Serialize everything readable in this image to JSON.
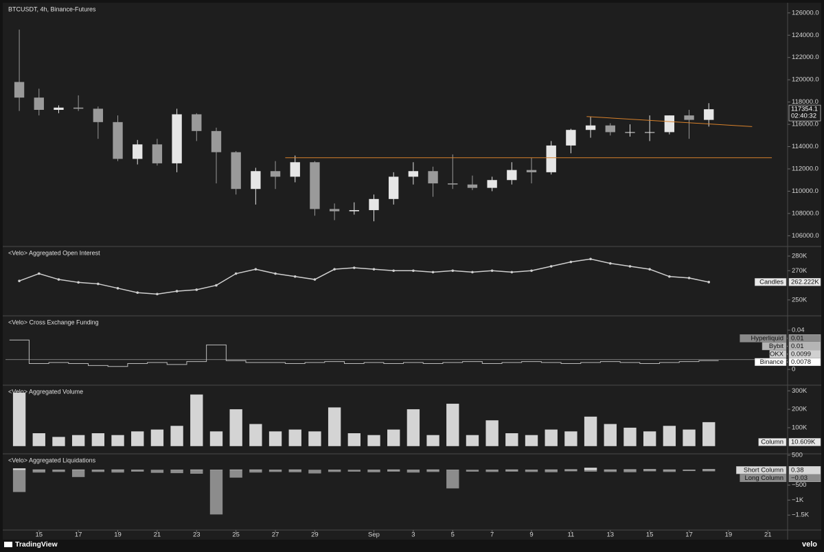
{
  "x_axis": {
    "x": [
      14,
      15,
      16,
      17,
      18,
      19,
      20,
      21,
      22,
      23,
      24,
      25,
      26,
      27,
      28,
      29,
      30,
      31,
      32,
      33,
      34,
      35,
      36,
      37,
      38,
      39,
      40,
      41,
      42,
      43,
      44,
      45,
      46,
      47,
      48,
      49
    ],
    "xlim": [
      13.3,
      53.0
    ],
    "xticks": [
      15,
      17,
      19,
      21,
      23,
      25,
      27,
      29,
      {
        "value": 32,
        "label": "Sep"
      },
      {
        "value": 34,
        "label": "3"
      },
      {
        "value": 36,
        "label": "5"
      },
      {
        "value": 38,
        "label": "7"
      },
      {
        "value": 40,
        "label": "9"
      },
      {
        "value": 42,
        "label": "11"
      },
      {
        "value": 44,
        "label": "13"
      },
      {
        "value": 46,
        "label": "15"
      },
      {
        "value": 48,
        "label": "17"
      },
      {
        "value": 50,
        "label": "19"
      },
      {
        "value": 52,
        "label": "21"
      }
    ]
  },
  "chart_data": [
    {
      "type": "candlestick",
      "title": "BTCUSDT, 4h, Binance-Futures",
      "open": [
        119800,
        118400,
        117300,
        117500,
        117400,
        116200,
        112900,
        114200,
        112500,
        116900,
        115400,
        113500,
        110200,
        111800,
        111300,
        112600,
        108400,
        108200,
        108300,
        109300,
        111300,
        111800,
        110700,
        110600,
        110300,
        111000,
        111900,
        111700,
        114100,
        115500,
        115900,
        115300,
        115300,
        115300,
        116800,
        116400
      ],
      "high": [
        124500,
        119200,
        117700,
        118600,
        117600,
        116800,
        114600,
        114700,
        117400,
        117000,
        115700,
        113600,
        112100,
        112700,
        113200,
        112700,
        108900,
        109000,
        109700,
        111700,
        112600,
        112200,
        113300,
        111400,
        111300,
        112600,
        113000,
        114500,
        115600,
        116700,
        116100,
        116000,
        116800,
        116800,
        117300,
        117900
      ],
      "low": [
        117200,
        116800,
        117000,
        117200,
        114700,
        112700,
        112400,
        112300,
        111700,
        114500,
        110700,
        109700,
        108800,
        110200,
        110800,
        107800,
        107400,
        107900,
        107300,
        108800,
        110600,
        109500,
        110200,
        110100,
        110000,
        110600,
        110700,
        111500,
        113400,
        114800,
        115000,
        114900,
        114500,
        115100,
        114700,
        115800
      ],
      "close": [
        118400,
        117300,
        117500,
        117400,
        116200,
        112900,
        114200,
        112500,
        116900,
        115400,
        113500,
        110200,
        111800,
        111300,
        112600,
        108400,
        108200,
        108300,
        109300,
        111300,
        111800,
        110700,
        110600,
        110300,
        111000,
        111900,
        111700,
        114100,
        115500,
        115900,
        115300,
        115300,
        115300,
        116800,
        116400,
        117354.1
      ],
      "up_color": "#e6e6e6",
      "down_color": "#9a9a9a",
      "ylim": [
        105100,
        126850
      ],
      "yticks": [
        {
          "value": 106000,
          "label": "106000.0"
        },
        {
          "value": 108000,
          "label": "108000.0"
        },
        {
          "value": 110000,
          "label": "110000.0"
        },
        {
          "value": 112000,
          "label": "112000.0"
        },
        {
          "value": 114000,
          "label": "114000.0"
        },
        {
          "value": 116000,
          "label": "116000.0"
        },
        {
          "value": 118000,
          "label": "118000.0"
        },
        {
          "value": 120000,
          "label": "120000.0"
        },
        {
          "value": 122000,
          "label": "122000.0"
        },
        {
          "value": 124000,
          "label": "124000.0"
        },
        {
          "value": 126000,
          "label": "126000.0"
        }
      ],
      "lines": [
        {
          "x": [
            27.5,
            52.2
          ],
          "y": [
            113000,
            113000
          ]
        },
        {
          "x": [
            42.8,
            51.2
          ],
          "y": [
            116700,
            115800
          ]
        }
      ],
      "line_color": "#d9822b",
      "price_tag": {
        "value": 117354.1,
        "countdown": "02:40:32"
      }
    },
    {
      "type": "line",
      "title": "<Velo> Aggregated Open Interest",
      "values": [
        263000,
        268000,
        264000,
        262000,
        261000,
        258000,
        255000,
        254000,
        256000,
        257000,
        260000,
        268000,
        271000,
        268000,
        266000,
        264000,
        271000,
        272000,
        271000,
        270000,
        270000,
        269000,
        270000,
        269000,
        270000,
        269000,
        270000,
        273000,
        276000,
        278000,
        275000,
        273000,
        271000,
        266000,
        265000,
        262222
      ],
      "color": "#cfcfcf",
      "ylim": [
        239600,
        286100
      ],
      "yticks": [
        {
          "value": 250000,
          "label": "250K"
        },
        {
          "value": 270000,
          "label": "270K"
        },
        {
          "value": 280000,
          "label": "280K"
        }
      ],
      "tag": {
        "name": "Candles",
        "value": 262222,
        "label": "262.222K"
      }
    },
    {
      "type": "step",
      "title": "<Velo> Cross Exchange Funding",
      "values": [
        0.03,
        0.006,
        0.007,
        0.006,
        0.004,
        0.003,
        0.006,
        0.007,
        0.005,
        0.008,
        0.025,
        0.009,
        0.007,
        0.007,
        0.006,
        0.007,
        0.008,
        0.006,
        0.007,
        0.006,
        0.007,
        0.006,
        0.007,
        0.008,
        0.006,
        0.007,
        0.008,
        0.007,
        0.006,
        0.007,
        0.008,
        0.007,
        0.006,
        0.007,
        0.008,
        0.009
      ],
      "color": "#bdbdbd",
      "hline": 0.01,
      "ylim": [
        -0.0154,
        0.054
      ],
      "yticks": [
        0,
        0.04
      ],
      "tags": [
        {
          "name": "Hyperliquid",
          "value": 0.01,
          "color": "#8a8a8a"
        },
        {
          "name": "Bybit",
          "value": 0.01,
          "color": "#b5b5b5"
        },
        {
          "name": "OKX",
          "value": 0.0099,
          "color": "#d0d0d0"
        },
        {
          "name": "Binance",
          "value": 0.0078,
          "color": "#ffffff"
        }
      ]
    },
    {
      "type": "bar",
      "title": "<Velo> Aggregated Volume",
      "values": [
        290000,
        70000,
        50000,
        60000,
        70000,
        60000,
        80000,
        90000,
        110000,
        280000,
        80000,
        200000,
        120000,
        80000,
        90000,
        80000,
        210000,
        70000,
        60000,
        90000,
        200000,
        60000,
        230000,
        60000,
        140000,
        70000,
        60000,
        90000,
        80000,
        160000,
        120000,
        100000,
        80000,
        110000,
        90000,
        130000
      ],
      "color": "#d4d4d4",
      "ylim": [
        -38000,
        327000
      ],
      "yticks": [
        {
          "value": 100000,
          "label": "100K"
        },
        {
          "value": 200000,
          "label": "200K"
        },
        {
          "value": 300000,
          "label": "300K"
        }
      ],
      "tag": {
        "name": "Column",
        "value": 10609,
        "label": "10.609K"
      }
    },
    {
      "type": "bar",
      "title": "<Velo> Aggregated Liquidations",
      "series": [
        {
          "name": "Short Column",
          "color": "#d8d8d8",
          "values": [
            60,
            20,
            15,
            20,
            15,
            20,
            15,
            10,
            15,
            20,
            15,
            20,
            20,
            15,
            20,
            10,
            15,
            10,
            15,
            20,
            15,
            20,
            15,
            10,
            15,
            20,
            15,
            20,
            25,
            80,
            20,
            25,
            30,
            20,
            15,
            30
          ],
          "tag": {
            "value": 0.38
          }
        },
        {
          "name": "Long Column",
          "color": "#8c8c8c",
          "values": [
            -730,
            -80,
            -60,
            -230,
            -60,
            -80,
            -50,
            -90,
            -100,
            -120,
            -1480,
            -250,
            -80,
            -60,
            -70,
            -110,
            -60,
            -50,
            -70,
            -50,
            -80,
            -60,
            -610,
            -50,
            -60,
            -50,
            -60,
            -70,
            -40,
            -50,
            -60,
            -70,
            -40,
            -60,
            -30,
            -40
          ],
          "tag": {
            "value": -0.03,
            "label": "−0.03"
          }
        }
      ],
      "ylim": [
        -1977,
        522
      ],
      "yticks": [
        {
          "value": -1500,
          "label": "−1.5K"
        },
        {
          "value": -1000,
          "label": "−1K"
        },
        {
          "value": -500,
          "label": "−500"
        },
        500
      ]
    }
  ],
  "footer": {
    "brand": "TradingView",
    "source": "velo"
  }
}
